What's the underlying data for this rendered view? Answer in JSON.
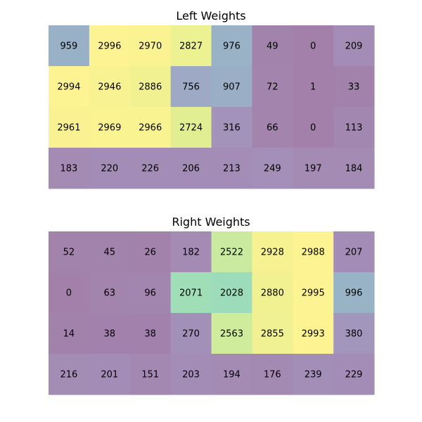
{
  "chart_data": [
    {
      "type": "heatmap",
      "title": "Left Weights",
      "rows": 4,
      "cols": 8,
      "vmin": 0,
      "vmax": 3000,
      "colormap": "viridis",
      "alpha": 0.5,
      "values": [
        [
          959,
          2996,
          2970,
          2827,
          976,
          49,
          0,
          209
        ],
        [
          2994,
          2946,
          2886,
          756,
          907,
          72,
          1,
          33
        ],
        [
          2961,
          2969,
          2966,
          2724,
          316,
          66,
          0,
          113
        ],
        [
          183,
          220,
          226,
          206,
          213,
          249,
          197,
          184
        ]
      ]
    },
    {
      "type": "heatmap",
      "title": "Right Weights",
      "rows": 4,
      "cols": 8,
      "vmin": 0,
      "vmax": 3000,
      "colormap": "viridis",
      "alpha": 0.5,
      "values": [
        [
          52,
          45,
          26,
          182,
          2522,
          2928,
          2988,
          207
        ],
        [
          0,
          63,
          96,
          2071,
          2028,
          2880,
          2995,
          996
        ],
        [
          14,
          38,
          38,
          270,
          2563,
          2855,
          2993,
          380
        ],
        [
          216,
          201,
          151,
          203,
          194,
          176,
          239,
          229
        ]
      ]
    }
  ]
}
